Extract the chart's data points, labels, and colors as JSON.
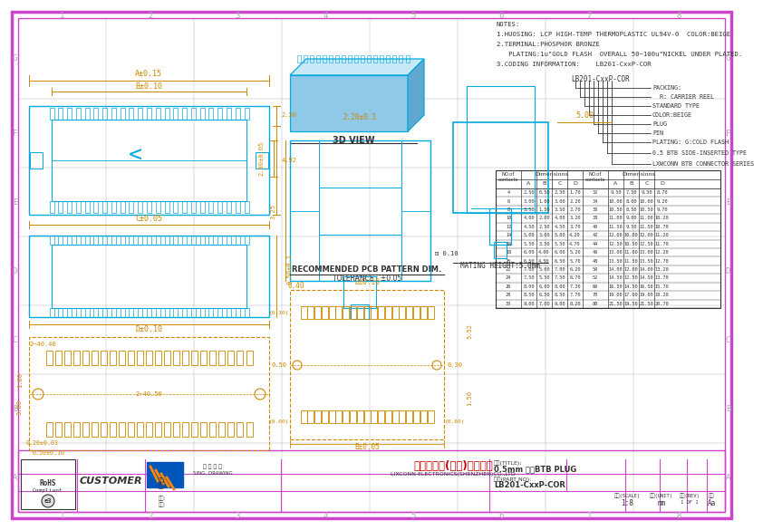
{
  "page_bg": "#ffffff",
  "outer_border_color": "#cc44cc",
  "inner_border_color": "#cc44cc",
  "drawing_line_color": "#00aadd",
  "dim_line_color": "#cc8800",
  "dark_line_color": "#333333",
  "grid_line_color": "#aaaaaa",
  "company_name": "连兴旺电子(深圳)有限公司",
  "company_en": "LIXCONN ELECTRONICS(SHENZHEN)CO.,LTD",
  "product_name": "0.5mm 侧插BTB PLUG",
  "part_number": "LB201-CxxP-COR",
  "tolerance": "TOLERANCE : ±0.05",
  "pcb_text": "RECOMMENDED PCB PATTERN DIM.",
  "mating_height": "MATING HEIGHT:5.0mm",
  "notes": [
    "NOTES:",
    "1.HUOSING: LCP HIGH-TEMP THERMOPLASTIC UL94V-0  COLOR:BEIGE",
    "2.TERMINAL:PHOSPHOR BRONZE",
    "   PLATING:1u\"GOLD FLASH  OVERALL 50~100u\"NICKEL UNDER PLATED.",
    "3.CODING INFORMATION:    LB201-CxxP-COR"
  ],
  "coding_labels": [
    "PACKING:",
    "  R: CARRIER REEL",
    "STANDARD TYPE",
    "COLOR:BEIGE",
    "PLUG",
    "PIN",
    "PLATING: G:GOLD FLASH",
    "0.5 BTB SIDE-INSERTED TYPE",
    "LXWCONN BTB CONNECTOR SERIES"
  ],
  "table_data": [
    [
      4,
      2.5,
      0.5,
      2.5,
      1.7,
      32,
      9.5,
      7.5,
      9.5,
      8.7
    ],
    [
      6,
      3.0,
      1.0,
      3.0,
      2.2,
      34,
      10.0,
      8.0,
      10.0,
      9.2
    ],
    [
      8,
      3.5,
      1.5,
      3.5,
      2.7,
      36,
      10.5,
      8.5,
      10.5,
      9.7
    ],
    [
      10,
      4.0,
      2.0,
      4.0,
      3.2,
      38,
      11.0,
      9.0,
      11.0,
      10.2
    ],
    [
      12,
      4.5,
      2.5,
      4.5,
      3.7,
      40,
      11.5,
      9.5,
      11.5,
      10.7
    ],
    [
      14,
      5.0,
      3.0,
      5.0,
      4.2,
      42,
      12.0,
      10.0,
      12.0,
      11.2
    ],
    [
      16,
      5.5,
      3.5,
      5.5,
      4.7,
      44,
      12.5,
      10.5,
      12.5,
      11.7
    ],
    [
      18,
      6.0,
      4.0,
      6.0,
      5.2,
      46,
      13.0,
      11.0,
      13.0,
      12.2
    ],
    [
      20,
      6.5,
      4.5,
      6.5,
      5.7,
      48,
      13.5,
      11.5,
      13.5,
      12.7
    ],
    [
      22,
      7.0,
      5.0,
      7.0,
      6.2,
      50,
      14.0,
      12.0,
      14.0,
      13.2
    ],
    [
      24,
      7.5,
      5.5,
      7.5,
      6.7,
      52,
      14.5,
      12.5,
      14.5,
      13.7
    ],
    [
      26,
      8.0,
      6.0,
      8.0,
      7.2,
      60,
      16.5,
      14.5,
      16.5,
      15.7
    ],
    [
      28,
      8.5,
      6.5,
      8.5,
      7.7,
      70,
      19.0,
      17.0,
      19.0,
      18.2
    ],
    [
      30,
      9.0,
      7.0,
      9.0,
      8.2,
      80,
      21.5,
      19.5,
      21.5,
      20.7
    ]
  ],
  "3d_view_label": "3D VIEW",
  "customer_label": "CUSTOMER"
}
